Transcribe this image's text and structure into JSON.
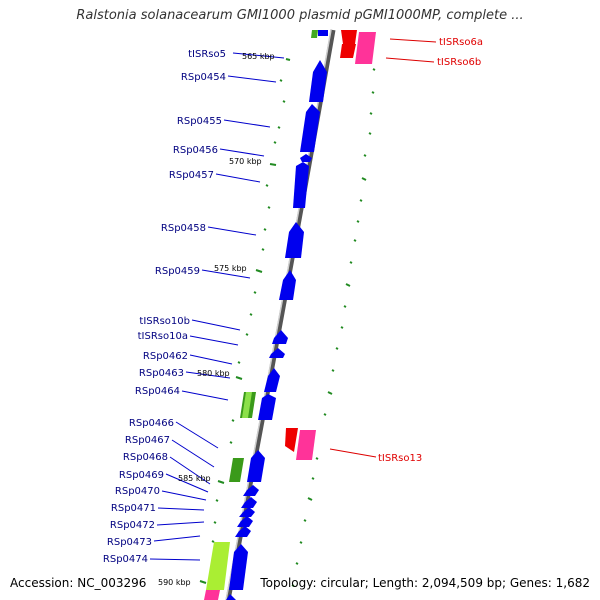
{
  "map": {
    "title": "Ralstonia solanacearum GMI1000 plasmid pGMI1000MP, complete ...",
    "accession": "Accession: NC_003296",
    "summary": "Topology: circular; Length: 2,094,509 bp; Genes: 1,682"
  },
  "colors": {
    "cds": "#0000ee",
    "label_blue": "#000080",
    "label_red": "#e00000",
    "trna": "#ee0000",
    "trna_pink": "#ff3399",
    "tick": "#228b22",
    "backbone": "#888888",
    "green_feature": "#44aa22"
  },
  "left_labels": [
    {
      "id": "tISRso5",
      "text": "tISRso5"
    },
    {
      "id": "RSp0454",
      "text": "RSp0454"
    },
    {
      "id": "RSp0455",
      "text": "RSp0455"
    },
    {
      "id": "RSp0456",
      "text": "RSp0456"
    },
    {
      "id": "RSp0457",
      "text": "RSp0457"
    },
    {
      "id": "RSp0458",
      "text": "RSp0458"
    },
    {
      "id": "RSp0459",
      "text": "RSp0459"
    },
    {
      "id": "tISRso10b",
      "text": "tISRso10b"
    },
    {
      "id": "tISRso10a",
      "text": "tISRso10a"
    },
    {
      "id": "RSp0462",
      "text": "RSp0462"
    },
    {
      "id": "RSp0463",
      "text": "RSp0463"
    },
    {
      "id": "RSp0464",
      "text": "RSp0464"
    },
    {
      "id": "RSp0466",
      "text": "RSp0466"
    },
    {
      "id": "RSp0467",
      "text": "RSp0467"
    },
    {
      "id": "RSp0468",
      "text": "RSp0468"
    },
    {
      "id": "RSp0469",
      "text": "RSp0469"
    },
    {
      "id": "RSp0470",
      "text": "RSp0470"
    },
    {
      "id": "RSp0471",
      "text": "RSp0471"
    },
    {
      "id": "RSp0472",
      "text": "RSp0472"
    },
    {
      "id": "RSp0473",
      "text": "RSp0473"
    },
    {
      "id": "RSp0474",
      "text": "RSp0474"
    }
  ],
  "right_labels": [
    {
      "id": "tISRso6a",
      "text": "tISRso6a"
    },
    {
      "id": "tISRso6b",
      "text": "tISRso6b"
    },
    {
      "id": "tISRso13",
      "text": "tISRso13"
    }
  ],
  "kbp_labels": [
    "565 kbp",
    "570 kbp",
    "575 kbp",
    "580 kbp",
    "585 kbp",
    "590 kbp"
  ]
}
